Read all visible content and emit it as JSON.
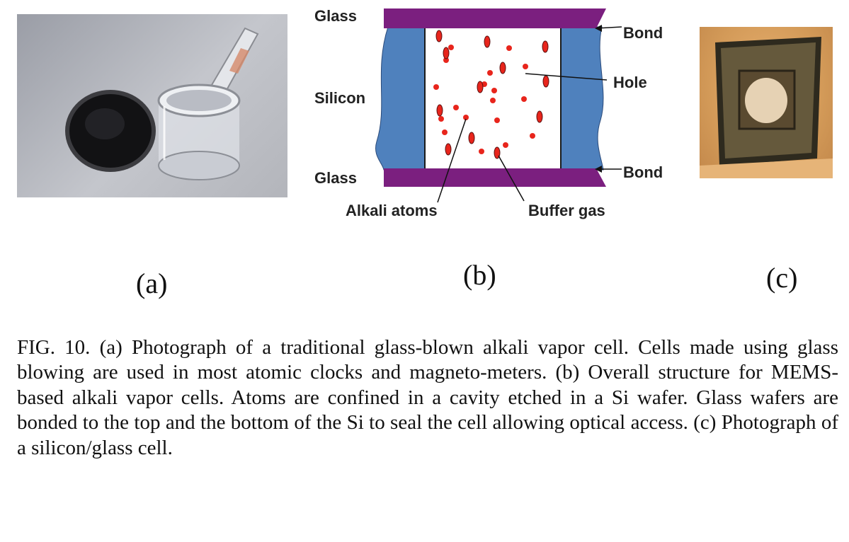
{
  "diagram": {
    "glass_top": "Glass",
    "silicon": "Silicon",
    "glass_bottom": "Glass",
    "bond_top": "Bond",
    "hole": "Hole",
    "bond_bottom": "Bond",
    "alkali_atoms": "Alkali atoms",
    "buffer_gas": "Buffer gas"
  },
  "panels": {
    "a": "(a)",
    "b": "(b)",
    "c": "(c)"
  },
  "caption": "FIG. 10. (a) Photograph of a traditional glass-blown alkali vapor cell. Cells made using glass blowing are used in most atomic clocks and magneto-meters. (b) Overall structure for MEMS-based alkali vapor cells. Atoms are confined in a cavity etched in a Si wafer. Glass wafers are bonded to the top and the bottom of the Si to seal the cell allowing optical access. (c) Photograph of a silicon/glass cell.",
  "colors": {
    "silicon": "#4f81bd",
    "glass": "#7b1f7f",
    "atoms": "#e8251c",
    "photo_a_bg": "#b8bac0",
    "photo_c_bg": "#d39a58"
  }
}
